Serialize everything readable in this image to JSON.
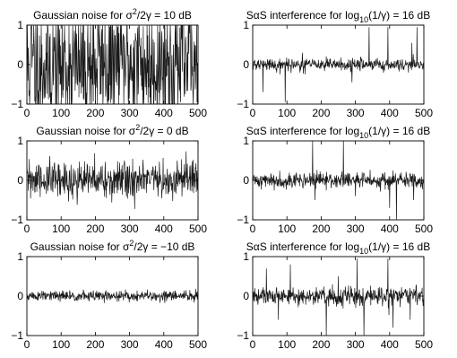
{
  "chart_data": [
    {
      "type": "line",
      "title_text": "Gaussian noise for ",
      "title_expr": [
        "σ",
        "2",
        "/2γ = 10 dB"
      ],
      "xlim": [
        0,
        500
      ],
      "ylim": [
        -1,
        1
      ],
      "xticks": [
        0,
        100,
        200,
        300,
        400,
        500
      ],
      "yticks": [
        -1,
        0,
        1
      ],
      "noise": {
        "kind": "gaussian",
        "sigma": 0.9,
        "seed": 11,
        "n": 500
      }
    },
    {
      "type": "line",
      "title_text": "SαS interference for ",
      "title_expr": [
        "log",
        "10",
        "(1/γ) = 16 dB"
      ],
      "xlim": [
        0,
        500
      ],
      "ylim": [
        -1,
        1
      ],
      "xticks": [
        0,
        100,
        200,
        300,
        400,
        500
      ],
      "yticks": [
        -1,
        0,
        1
      ],
      "noise": {
        "kind": "impulsive",
        "sigma": 0.08,
        "seed": 21,
        "n": 500,
        "spikes": [
          [
            30,
            -0.7
          ],
          [
            95,
            -0.95
          ],
          [
            145,
            0.3
          ],
          [
            290,
            -0.45
          ],
          [
            340,
            0.95
          ],
          [
            395,
            0.95
          ],
          [
            465,
            0.55
          ],
          [
            480,
            0.95
          ]
        ]
      }
    },
    {
      "type": "line",
      "title_text": "Gaussian noise for ",
      "title_expr": [
        "σ",
        "2",
        "/2γ = 0 dB"
      ],
      "xlim": [
        0,
        500
      ],
      "ylim": [
        -1,
        1
      ],
      "xticks": [
        0,
        100,
        200,
        300,
        400,
        500
      ],
      "yticks": [
        -1,
        0,
        1
      ],
      "noise": {
        "kind": "gaussian",
        "sigma": 0.25,
        "seed": 31,
        "n": 500
      }
    },
    {
      "type": "line",
      "title_text": "SαS interference for ",
      "title_expr": [
        "log",
        "10",
        "(1/γ) = 16 dB"
      ],
      "xlim": [
        0,
        500
      ],
      "ylim": [
        -1,
        1
      ],
      "xticks": [
        0,
        100,
        200,
        300,
        400,
        500
      ],
      "yticks": [
        -1,
        0,
        1
      ],
      "noise": {
        "kind": "impulsive",
        "sigma": 0.1,
        "seed": 41,
        "n": 500,
        "spikes": [
          [
            175,
            1.0
          ],
          [
            182,
            -0.5
          ],
          [
            265,
            1.0
          ],
          [
            300,
            -0.4
          ],
          [
            400,
            -0.7
          ],
          [
            420,
            -1.0
          ],
          [
            470,
            -0.5
          ]
        ]
      }
    },
    {
      "type": "line",
      "title_text": "Gaussian noise for ",
      "title_expr": [
        "σ",
        "2",
        "/2γ = −10 dB"
      ],
      "xlim": [
        0,
        500
      ],
      "ylim": [
        -1,
        1
      ],
      "xticks": [
        0,
        100,
        200,
        300,
        400,
        500
      ],
      "yticks": [
        -1,
        0,
        1
      ],
      "noise": {
        "kind": "gaussian",
        "sigma": 0.07,
        "seed": 51,
        "n": 500
      }
    },
    {
      "type": "line",
      "title_text": "SαS interference for ",
      "title_expr": [
        "log",
        "10",
        "(1/γ) = 16 dB"
      ],
      "xlim": [
        0,
        500
      ],
      "ylim": [
        -1,
        1
      ],
      "xticks": [
        0,
        100,
        200,
        300,
        400,
        500
      ],
      "yticks": [
        -1,
        0,
        1
      ],
      "noise": {
        "kind": "impulsive",
        "sigma": 0.12,
        "seed": 61,
        "n": 500,
        "spikes": [
          [
            40,
            0.7
          ],
          [
            75,
            -0.6
          ],
          [
            110,
            0.8
          ],
          [
            215,
            -1.0
          ],
          [
            250,
            0.5
          ],
          [
            305,
            0.95
          ],
          [
            325,
            -1.0
          ],
          [
            395,
            0.95
          ],
          [
            410,
            -0.8
          ],
          [
            460,
            -0.6
          ]
        ]
      }
    }
  ]
}
